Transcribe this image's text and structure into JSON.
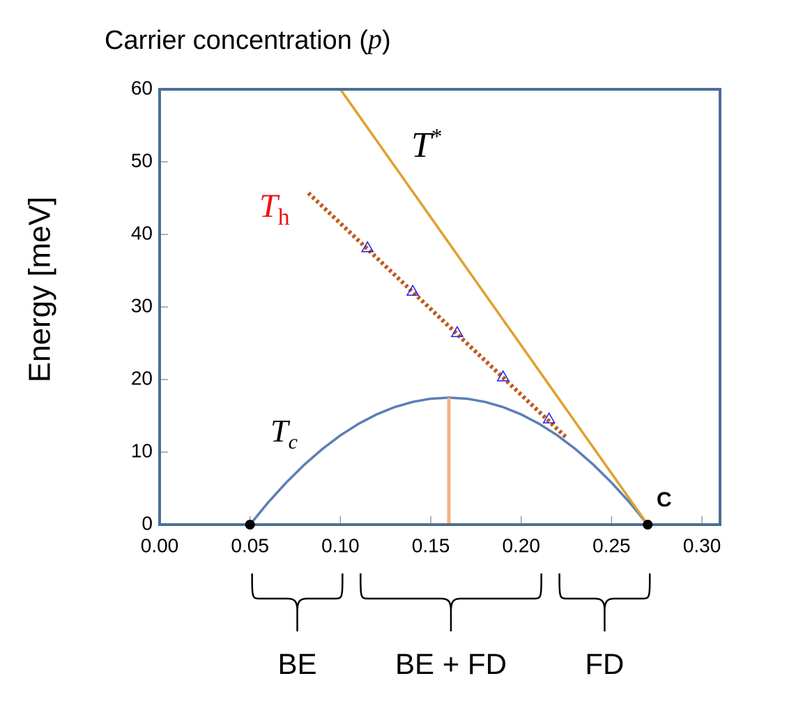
{
  "chart_data": {
    "type": "line",
    "title": [
      "Carrier concentration (",
      "p",
      ")"
    ],
    "y_label": "Energy [meV]",
    "xlim": [
      0,
      0.31
    ],
    "ylim": [
      0,
      60
    ],
    "xticks": [
      {
        "value": 0,
        "label": "0.00"
      },
      0.05,
      {
        "value": 0.1,
        "label": "0.10"
      },
      0.15,
      {
        "value": 0.2,
        "label": "0.20"
      },
      0.25,
      {
        "value": 0.3,
        "label": "0.30"
      }
    ],
    "yticks": [
      0,
      10,
      20,
      30,
      40,
      50,
      60
    ],
    "series": [
      {
        "type": "line",
        "style": "solid",
        "color": "#5b7fb5",
        "x": [
          0.05,
          0.06,
          0.07,
          0.08,
          0.09,
          0.1,
          0.11,
          0.12,
          0.13,
          0.14,
          0.15,
          0.16,
          0.17,
          0.18,
          0.19,
          0.2,
          0.21,
          0.22,
          0.23,
          0.24,
          0.25,
          0.26,
          0.27
        ],
        "values": [
          0,
          3.05,
          5.79,
          8.25,
          10.42,
          12.3,
          13.89,
          15.19,
          16.2,
          16.92,
          17.36,
          17.5,
          17.36,
          16.92,
          16.2,
          15.19,
          13.89,
          12.3,
          10.42,
          8.25,
          5.79,
          3.05,
          0
        ]
      },
      {
        "type": "line",
        "style": "solid",
        "color": "#e0a030",
        "x": [
          0.1,
          0.27
        ],
        "values": [
          60,
          0
        ]
      },
      {
        "type": "line",
        "style": "dotted",
        "color": "#c0581c",
        "x": [
          0.0823,
          0.2254
        ],
        "values": [
          45.7,
          11.9
        ]
      },
      {
        "type": "scatter",
        "marker": "triangle",
        "color": "#2020e0",
        "x": [
          0.115,
          0.14,
          0.1646,
          0.19,
          0.2154
        ],
        "values": [
          38.2,
          32.2,
          26.5,
          20.4,
          14.6
        ]
      },
      {
        "type": "line",
        "style": "solid",
        "color": "#f4b183",
        "x": [
          0.16,
          0.16
        ],
        "values": [
          0,
          17.5
        ]
      },
      {
        "type": "scatter",
        "marker": "dot",
        "color": "#000000",
        "x": [
          0.05,
          0.27
        ],
        "values": [
          0,
          0
        ]
      }
    ],
    "annotations": [
      {
        "text": "T",
        "sup": "*",
        "color": "#000000"
      },
      {
        "text": "T",
        "sub": "h",
        "color": "#ee1111"
      },
      {
        "text": "T",
        "sub": "c",
        "color": "#000000"
      },
      {
        "text": "C",
        "color": "#000000"
      }
    ],
    "regions": [
      {
        "label": "BE",
        "range": [
          0.05,
          0.1
        ]
      },
      {
        "label": "BE + FD",
        "range": [
          0.11,
          0.21
        ]
      },
      {
        "label": "FD",
        "range": [
          0.22,
          0.27
        ]
      }
    ]
  }
}
